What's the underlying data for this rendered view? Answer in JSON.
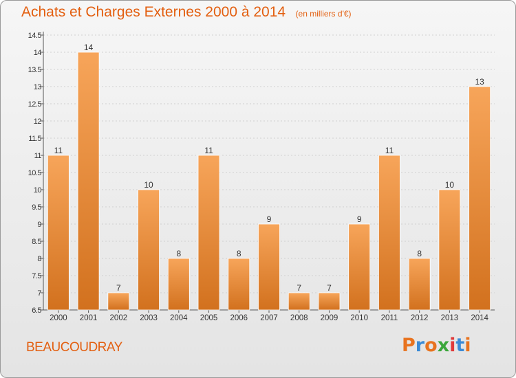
{
  "header": {
    "title": "Achats et Charges Externes 2000 à 2014",
    "unit": "(en milliers d'€)"
  },
  "footer": {
    "commune": "BEAUCOUDRAY",
    "logo_text": "Proxiti"
  },
  "colors": {
    "accent": "#e35f10",
    "bar_light": "#f7a55a",
    "bar_dark": "#d2711e",
    "logo_letters": [
      "#e8731f",
      "#3a8ad6",
      "#e8731f",
      "#3aa63a",
      "#e03a3a",
      "#3a8ad6",
      "#e8731f"
    ]
  },
  "chart_data": {
    "type": "bar",
    "title": "Achats et Charges Externes 2000 à 2014",
    "subtitle": "(en milliers d'€)",
    "categories": [
      "2000",
      "2001",
      "2002",
      "2003",
      "2004",
      "2005",
      "2006",
      "2007",
      "2008",
      "2009",
      "2010",
      "2011",
      "2012",
      "2013",
      "2014"
    ],
    "values": [
      11,
      14,
      7,
      10,
      8,
      11,
      8,
      9,
      7,
      7,
      9,
      11,
      8,
      10,
      13
    ],
    "ylim": [
      6.5,
      14.5
    ],
    "yticks": [
      "6.5",
      "7",
      "7.5",
      "8",
      "8.5",
      "9",
      "9.5",
      "10",
      "10.5",
      "11",
      "11.5",
      "12",
      "12.5",
      "13",
      "13.5",
      "14",
      "14.5"
    ],
    "grid": true,
    "data_labels": true
  }
}
